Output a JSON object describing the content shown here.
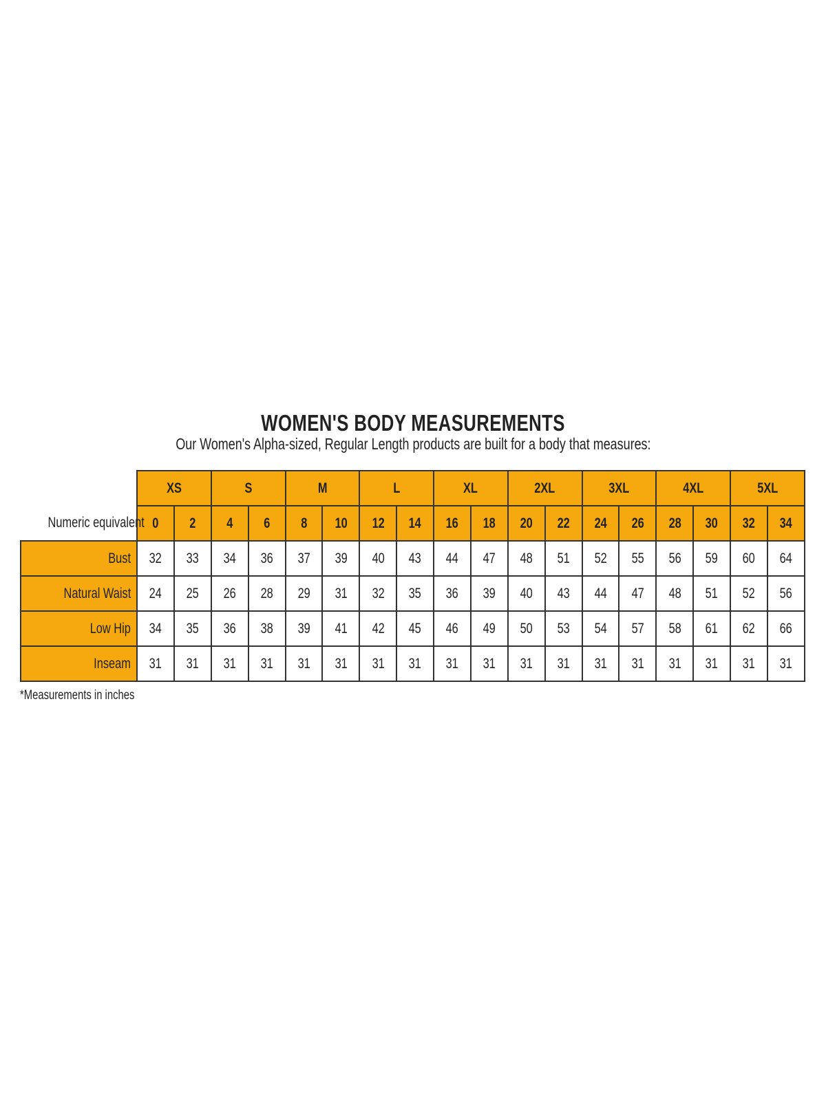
{
  "title": "WOMEN'S BODY MEASUREMENTS",
  "subtitle": "Our Women's Alpha-sized, Regular Length products are built for a body that measures:",
  "colors": {
    "header_fill": "#F5A90F",
    "border": "#333333"
  },
  "table": {
    "sizes": [
      "XS",
      "S",
      "M",
      "L",
      "XL",
      "2XL",
      "3XL",
      "4XL",
      "5XL"
    ],
    "numeric_label": "Numeric equivalent",
    "numeric": [
      "0",
      "2",
      "4",
      "6",
      "8",
      "10",
      "12",
      "14",
      "16",
      "18",
      "20",
      "22",
      "24",
      "26",
      "28",
      "30",
      "32",
      "34"
    ],
    "rows": [
      {
        "label": "Bust",
        "values": [
          "32",
          "33",
          "34",
          "36",
          "37",
          "39",
          "40",
          "43",
          "44",
          "47",
          "48",
          "51",
          "52",
          "55",
          "56",
          "59",
          "60",
          "64"
        ]
      },
      {
        "label": "Natural Waist",
        "values": [
          "24",
          "25",
          "26",
          "28",
          "29",
          "31",
          "32",
          "35",
          "36",
          "39",
          "40",
          "43",
          "44",
          "47",
          "48",
          "51",
          "52",
          "56"
        ]
      },
      {
        "label": "Low Hip",
        "values": [
          "34",
          "35",
          "36",
          "38",
          "39",
          "41",
          "42",
          "45",
          "46",
          "49",
          "50",
          "53",
          "54",
          "57",
          "58",
          "61",
          "62",
          "66"
        ]
      },
      {
        "label": "Inseam",
        "values": [
          "31",
          "31",
          "31",
          "31",
          "31",
          "31",
          "31",
          "31",
          "31",
          "31",
          "31",
          "31",
          "31",
          "31",
          "31",
          "31",
          "31",
          "31"
        ]
      }
    ]
  },
  "footnote": "*Measurements in inches"
}
